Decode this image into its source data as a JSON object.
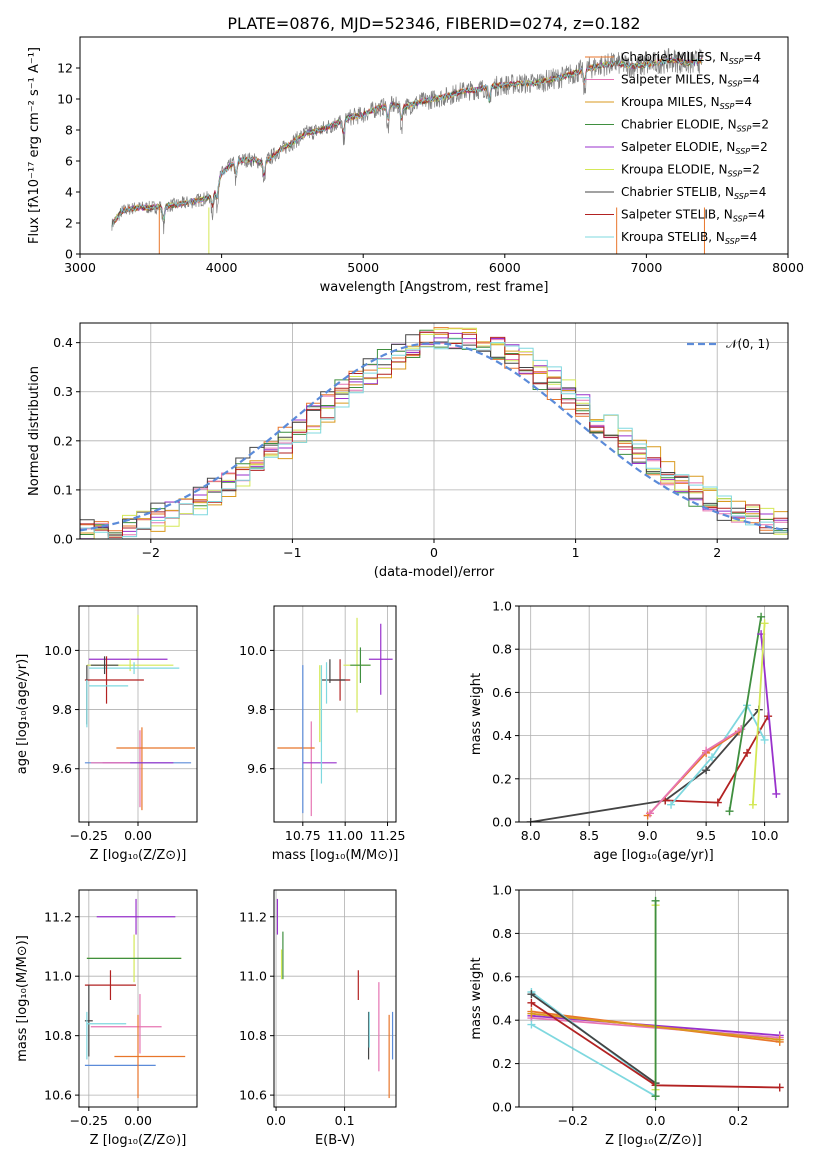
{
  "figure": {
    "title": "PLATE=0876, MJD=52346, FIBERID=0274, z=0.182"
  },
  "chart_data": [
    {
      "id": "spectrum",
      "type": "line",
      "xlabel": "wavelength [Angstrom, rest frame]",
      "ylabel": "Flux [fλ10⁻¹⁷ erg cm⁻² s⁻¹ A⁻¹]",
      "xlim": [
        3000,
        8000
      ],
      "ylim": [
        0,
        14
      ],
      "xticks": [
        "3000",
        "4000",
        "5000",
        "6000",
        "7000",
        "8000"
      ],
      "yticks": [
        "0",
        "2",
        "4",
        "6",
        "8",
        "10",
        "12"
      ],
      "grid": false,
      "legend_position": "top-right",
      "data_color": "#808080",
      "continuum": {
        "x": [
          3225,
          3300,
          3400,
          3500,
          3600,
          3700,
          3800,
          3900,
          3950,
          4000,
          4100,
          4200,
          4300,
          4400,
          4500,
          4600,
          4700,
          4800,
          4900,
          5000,
          5100,
          5200,
          5300,
          5400,
          5500,
          5600,
          5700,
          5800,
          5900,
          6000,
          6100,
          6200,
          6300,
          6400,
          6500,
          6600,
          6700,
          6800,
          6900,
          7000,
          7100,
          7200,
          7300,
          7400
        ],
        "y": [
          1.9,
          2.8,
          3.0,
          3.0,
          3.1,
          3.2,
          3.4,
          3.6,
          4.0,
          5.2,
          6.0,
          6.1,
          5.9,
          6.6,
          7.2,
          7.8,
          8.0,
          8.4,
          8.8,
          9.0,
          9.4,
          9.6,
          9.5,
          9.8,
          10.0,
          10.2,
          10.5,
          10.6,
          10.8,
          10.9,
          11.0,
          11.0,
          11.2,
          11.4,
          11.7,
          12.0,
          12.2,
          12.3,
          12.1,
          12.2,
          12.4,
          12.5,
          12.3,
          12.5
        ]
      },
      "absorption_lines": [
        3590,
        3934,
        3968,
        4102,
        4300,
        4861,
        5175,
        5270,
        5890,
        6563
      ],
      "series": [
        {
          "name": "Chabrier MILES, N_SSP=4",
          "color": "#e8762b"
        },
        {
          "name": "Salpeter MILES, N_SSP=4",
          "color": "#e675b3"
        },
        {
          "name": "Kroupa MILES, N_SSP=4",
          "color": "#d99a1f"
        },
        {
          "name": "Chabrier ELODIE, N_SSP=2",
          "color": "#3f8f3f"
        },
        {
          "name": "Salpeter ELODIE, N_SSP=2",
          "color": "#9932cc"
        },
        {
          "name": "Kroupa ELODIE, N_SSP=2",
          "color": "#d4e857"
        },
        {
          "name": "Chabrier STELIB, N_SSP=4",
          "color": "#444444"
        },
        {
          "name": "Salpeter STELIB, N_SSP=4",
          "color": "#b22222"
        },
        {
          "name": "Kroupa STELIB, N_SSP=4",
          "color": "#7fd8df"
        }
      ]
    },
    {
      "id": "residuals",
      "type": "histogram",
      "xlabel": "(data-model)/error",
      "ylabel": "Normed distribution",
      "xlim": [
        -2.5,
        2.5
      ],
      "ylim": [
        0,
        0.44
      ],
      "xticks": [
        "−2",
        "−1",
        "0",
        "1",
        "2"
      ],
      "yticks": [
        "0.0",
        "0.1",
        "0.2",
        "0.3",
        "0.4"
      ],
      "grid": true,
      "legend_position": "top-right",
      "legend": "𝒩(0, 1)",
      "normal_curve_color": "#5b8bd9",
      "bin_width": 0.1
    },
    {
      "id": "z-age",
      "type": "errorbar",
      "xlabel": "Z [log₁₀(Z/Z⊙)]",
      "ylabel": "age  [log₁₀(age/yr)]",
      "xlim": [
        -0.3,
        0.3
      ],
      "ylim": [
        9.42,
        10.15
      ],
      "xticks": [
        {
          "v": -0.25,
          "t": "−0.25"
        },
        {
          "v": 0,
          "t": "0.00"
        }
      ],
      "yticks": [
        {
          "v": 9.6,
          "t": "9.6"
        },
        {
          "v": 9.8,
          "t": "9.8"
        },
        {
          "v": 10.0,
          "t": "10.0"
        }
      ],
      "points": [
        {
          "x": -0.05,
          "y": 9.97,
          "xe": 0.2,
          "ye": 0.0,
          "c": "#9932cc"
        },
        {
          "x": -0.04,
          "y": 9.95,
          "xe": 0.22,
          "ye": 0.02,
          "c": "#d4e857"
        },
        {
          "x": -0.02,
          "y": 9.94,
          "xe": 0.23,
          "ye": 0.02,
          "c": "#7fd8df"
        },
        {
          "x": -0.17,
          "y": 9.95,
          "xe": 0.07,
          "ye": 0.03,
          "c": "#444444"
        },
        {
          "x": -0.12,
          "y": 9.9,
          "xe": 0.15,
          "ye": 0.0,
          "c": "#b22222"
        },
        {
          "x": -0.16,
          "y": 9.9,
          "xe": 0.0,
          "ye": 0.08,
          "c": "#b22222"
        },
        {
          "x": -0.26,
          "y": 9.85,
          "xe": 0.0,
          "ye": 0.1,
          "c": "#444444"
        },
        {
          "x": -0.26,
          "y": 9.82,
          "xe": 0.0,
          "ye": 0.08,
          "c": "#7fd8df"
        },
        {
          "x": -0.15,
          "y": 9.88,
          "xe": 0.1,
          "ye": 0.0,
          "c": "#7fd8df"
        },
        {
          "x": 0.0,
          "y": 10.05,
          "xe": 0.0,
          "ye": 0.07,
          "c": "#d4e857"
        },
        {
          "x": 0.01,
          "y": 9.6,
          "xe": 0.0,
          "ye": 0.13,
          "c": "#e675b3"
        },
        {
          "x": 0.02,
          "y": 9.6,
          "xe": 0.0,
          "ye": 0.14,
          "c": "#e8762b"
        },
        {
          "x": 0.09,
          "y": 9.67,
          "xe": 0.2,
          "ye": 0.0,
          "c": "#e8762b"
        },
        {
          "x": 0.0,
          "y": 9.62,
          "xe": 0.27,
          "ye": 0.0,
          "c": "#5b8bd9"
        },
        {
          "x": 0.0,
          "y": 9.62,
          "xe": 0.18,
          "ye": 0.0,
          "c": "#9932cc"
        },
        {
          "x": -0.14,
          "y": 9.62,
          "xe": 0.1,
          "ye": 0.0,
          "c": "#e675b3"
        }
      ]
    },
    {
      "id": "mass-age",
      "type": "errorbar",
      "xlabel": "mass [log₁₀(M/M⊙)]",
      "ylabel": "",
      "xlim": [
        10.58,
        11.3
      ],
      "ylim": [
        9.42,
        10.15
      ],
      "xticks": [
        {
          "v": 10.75,
          "t": "10.75"
        },
        {
          "v": 11.0,
          "t": "11.00"
        },
        {
          "v": 11.25,
          "t": "11.25"
        }
      ],
      "yticks": [
        {
          "v": 9.6,
          "t": "9.6"
        },
        {
          "v": 9.8,
          "t": "9.8"
        },
        {
          "v": 10.0,
          "t": "10.0"
        }
      ],
      "points": [
        {
          "x": 11.21,
          "y": 9.97,
          "xe": 0.07,
          "ye": 0.12,
          "c": "#9932cc"
        },
        {
          "x": 11.07,
          "y": 9.95,
          "xe": 0.08,
          "ye": 0.16,
          "c": "#d4e857"
        },
        {
          "x": 11.09,
          "y": 9.95,
          "xe": 0.06,
          "ye": 0.06,
          "c": "#3f8f3f"
        },
        {
          "x": 10.97,
          "y": 9.9,
          "xe": 0.06,
          "ye": 0.07,
          "c": "#b22222"
        },
        {
          "x": 10.93,
          "y": 9.9,
          "xe": 0.07,
          "ye": 0.0,
          "c": "#444444"
        },
        {
          "x": 10.89,
          "y": 9.89,
          "xe": 0.0,
          "ye": 0.07,
          "c": "#7fd8df"
        },
        {
          "x": 10.91,
          "y": 9.93,
          "xe": 0.0,
          "ye": 0.04,
          "c": "#444444"
        },
        {
          "x": 10.85,
          "y": 9.82,
          "xe": 0.0,
          "ye": 0.13,
          "c": "#d4e857"
        },
        {
          "x": 10.8,
          "y": 9.6,
          "xe": 0.0,
          "ye": 0.16,
          "c": "#e675b3"
        },
        {
          "x": 10.71,
          "y": 9.67,
          "xe": 0.11,
          "ye": 0.0,
          "c": "#e8762b"
        },
        {
          "x": 10.75,
          "y": 9.7,
          "xe": 0.0,
          "ye": 0.25,
          "c": "#5b8bd9"
        },
        {
          "x": 10.85,
          "y": 9.62,
          "xe": 0.1,
          "ye": 0.0,
          "c": "#9932cc"
        },
        {
          "x": 10.86,
          "y": 9.75,
          "xe": 0.0,
          "ye": 0.2,
          "c": "#7fd8df"
        }
      ]
    },
    {
      "id": "age-weight",
      "type": "line",
      "xlabel": "age  [log₁₀(age/yr)]",
      "ylabel": "mass weight",
      "xlim": [
        7.9,
        10.2
      ],
      "ylim": [
        0,
        1
      ],
      "xticks": [
        {
          "v": 8.0,
          "t": "8.0"
        },
        {
          "v": 8.5,
          "t": "8.5"
        },
        {
          "v": 9.0,
          "t": "9.0"
        },
        {
          "v": 9.5,
          "t": "9.5"
        },
        {
          "v": 10.0,
          "t": "10.0"
        }
      ],
      "yticks": [
        {
          "v": 0,
          "t": "0.0"
        },
        {
          "v": 0.2,
          "t": "0.2"
        },
        {
          "v": 0.4,
          "t": "0.4"
        },
        {
          "v": 0.6,
          "t": "0.6"
        },
        {
          "v": 0.8,
          "t": "0.8"
        },
        {
          "v": 1.0,
          "t": "1.0"
        }
      ],
      "lines": [
        {
          "c": "#444444",
          "x": [
            8.0,
            9.15,
            9.5,
            9.95
          ],
          "y": [
            0.0,
            0.1,
            0.24,
            0.52
          ]
        },
        {
          "c": "#b22222",
          "x": [
            9.15,
            9.6,
            9.85,
            10.03
          ],
          "y": [
            0.1,
            0.09,
            0.32,
            0.49
          ]
        },
        {
          "c": "#7fd8df",
          "x": [
            9.2,
            9.55,
            9.85,
            10.0
          ],
          "y": [
            0.08,
            0.3,
            0.54,
            0.38
          ]
        },
        {
          "c": "#e8762b",
          "x": [
            9.0,
            9.5,
            9.78
          ],
          "y": [
            0.03,
            0.32,
            0.42
          ]
        },
        {
          "c": "#e675b3",
          "x": [
            9.02,
            9.5,
            9.8
          ],
          "y": [
            0.04,
            0.33,
            0.43
          ]
        },
        {
          "c": "#3f8f3f",
          "x": [
            9.7,
            9.97
          ],
          "y": [
            0.05,
            0.95
          ]
        },
        {
          "c": "#9932cc",
          "x": [
            9.97,
            10.1
          ],
          "y": [
            0.87,
            0.13
          ]
        },
        {
          "c": "#d4e857",
          "x": [
            9.9,
            10.0
          ],
          "y": [
            0.08,
            0.92
          ]
        }
      ]
    },
    {
      "id": "z-mass",
      "type": "errorbar",
      "xlabel": "Z [log₁₀(Z/Z⊙)]",
      "ylabel": "mass [log₁₀(M/M⊙)]",
      "xlim": [
        -0.3,
        0.3
      ],
      "ylim": [
        10.56,
        11.29
      ],
      "xticks": [
        {
          "v": -0.25,
          "t": "−0.25"
        },
        {
          "v": 0,
          "t": "0.00"
        }
      ],
      "yticks": [
        {
          "v": 10.6,
          "t": "10.6"
        },
        {
          "v": 10.8,
          "t": "10.8"
        },
        {
          "v": 11.0,
          "t": "11.0"
        },
        {
          "v": 11.2,
          "t": "11.2"
        }
      ],
      "points": [
        {
          "x": -0.01,
          "y": 11.2,
          "xe": 0.2,
          "ye": 0.06,
          "c": "#9932cc"
        },
        {
          "x": -0.02,
          "y": 11.06,
          "xe": 0.24,
          "ye": 0.08,
          "c": "#d4e857"
        },
        {
          "x": -0.02,
          "y": 11.06,
          "xe": 0.24,
          "ye": 0.0,
          "c": "#3f8f3f"
        },
        {
          "x": -0.14,
          "y": 10.97,
          "xe": 0.13,
          "ye": 0.05,
          "c": "#b22222"
        },
        {
          "x": -0.25,
          "y": 10.85,
          "xe": 0.02,
          "ye": 0.12,
          "c": "#444444"
        },
        {
          "x": -0.16,
          "y": 10.84,
          "xe": 0.1,
          "ye": 0.0,
          "c": "#7fd8df"
        },
        {
          "x": -0.06,
          "y": 10.83,
          "xe": 0.18,
          "ye": 0.0,
          "c": "#e675b3"
        },
        {
          "x": 0.06,
          "y": 10.73,
          "xe": 0.18,
          "ye": 0.0,
          "c": "#e8762b"
        },
        {
          "x": -0.09,
          "y": 10.7,
          "xe": 0.18,
          "ye": 0.0,
          "c": "#5b8bd9"
        },
        {
          "x": -0.26,
          "y": 10.8,
          "xe": 0.0,
          "ye": 0.08,
          "c": "#7fd8df"
        },
        {
          "x": 0.0,
          "y": 10.73,
          "xe": 0.0,
          "ye": 0.14,
          "c": "#e8762b"
        },
        {
          "x": 0.01,
          "y": 10.84,
          "xe": 0.0,
          "ye": 0.1,
          "c": "#e675b3"
        }
      ]
    },
    {
      "id": "ebv-mass",
      "type": "errorbar",
      "xlabel": "E(B-V)",
      "ylabel": "",
      "xlim": [
        -0.003,
        0.175
      ],
      "ylim": [
        10.56,
        11.29
      ],
      "xticks": [
        {
          "v": 0.0,
          "t": "0.0"
        },
        {
          "v": 0.1,
          "t": "0.1"
        }
      ],
      "yticks": [
        {
          "v": 10.6,
          "t": "10.6"
        },
        {
          "v": 10.8,
          "t": "10.8"
        },
        {
          "v": 11.0,
          "t": "11.0"
        },
        {
          "v": 11.2,
          "t": "11.2"
        }
      ],
      "points": [
        {
          "x": 0.002,
          "y": 11.2,
          "xe": 0.0,
          "ye": 0.06,
          "c": "#9932cc"
        },
        {
          "x": 0.01,
          "y": 11.07,
          "xe": 0.0,
          "ye": 0.08,
          "c": "#3f8f3f"
        },
        {
          "x": 0.008,
          "y": 11.04,
          "xe": 0.0,
          "ye": 0.05,
          "c": "#d4e857"
        },
        {
          "x": 0.12,
          "y": 10.97,
          "xe": 0.0,
          "ye": 0.05,
          "c": "#b22222"
        },
        {
          "x": 0.135,
          "y": 10.8,
          "xe": 0.0,
          "ye": 0.08,
          "c": "#444444"
        },
        {
          "x": 0.136,
          "y": 10.82,
          "xe": 0.0,
          "ye": 0.06,
          "c": "#7fd8df"
        },
        {
          "x": 0.15,
          "y": 10.83,
          "xe": 0.0,
          "ye": 0.15,
          "c": "#e675b3"
        },
        {
          "x": 0.165,
          "y": 10.73,
          "xe": 0.0,
          "ye": 0.14,
          "c": "#e8762b"
        },
        {
          "x": 0.17,
          "y": 10.8,
          "xe": 0.0,
          "ye": 0.08,
          "c": "#5b8bd9"
        }
      ]
    },
    {
      "id": "z-weight",
      "type": "line",
      "xlabel": "Z [log₁₀(Z/Z⊙)]",
      "ylabel": "mass weight",
      "xlim": [
        -0.33,
        0.32
      ],
      "ylim": [
        0,
        1
      ],
      "xticks": [
        {
          "v": -0.2,
          "t": "−0.2"
        },
        {
          "v": 0.0,
          "t": "0.0"
        },
        {
          "v": 0.2,
          "t": "0.2"
        }
      ],
      "yticks": [
        {
          "v": 0,
          "t": "0.0"
        },
        {
          "v": 0.2,
          "t": "0.2"
        },
        {
          "v": 0.4,
          "t": "0.4"
        },
        {
          "v": 0.6,
          "t": "0.6"
        },
        {
          "v": 0.8,
          "t": "0.8"
        },
        {
          "v": 1.0,
          "t": "1.0"
        }
      ],
      "lines": [
        {
          "c": "#9932cc",
          "x": [
            -0.3,
            0.3
          ],
          "y": [
            0.42,
            0.33
          ]
        },
        {
          "c": "#e675b3",
          "x": [
            -0.3,
            0.3
          ],
          "y": [
            0.41,
            0.32
          ]
        },
        {
          "c": "#e8762b",
          "x": [
            -0.3,
            0.3
          ],
          "y": [
            0.44,
            0.3
          ]
        },
        {
          "c": "#d99a1f",
          "x": [
            -0.3,
            0.3
          ],
          "y": [
            0.43,
            0.31
          ]
        },
        {
          "c": "#7fd8df",
          "x": [
            -0.3,
            0.0
          ],
          "y": [
            0.38,
            0.05
          ]
        },
        {
          "c": "#7fd8df",
          "x": [
            -0.3,
            0.0
          ],
          "y": [
            0.53,
            0.1
          ]
        },
        {
          "c": "#444444",
          "x": [
            -0.3,
            0.0
          ],
          "y": [
            0.52,
            0.11
          ]
        },
        {
          "c": "#b22222",
          "x": [
            -0.3,
            0.0,
            0.3
          ],
          "y": [
            0.48,
            0.1,
            0.09
          ]
        },
        {
          "c": "#d4e857",
          "x": [
            0.0,
            0.0
          ],
          "y": [
            0.08,
            0.93
          ]
        },
        {
          "c": "#3f8f3f",
          "x": [
            0.0,
            0.0
          ],
          "y": [
            0.05,
            0.95
          ]
        }
      ]
    }
  ]
}
